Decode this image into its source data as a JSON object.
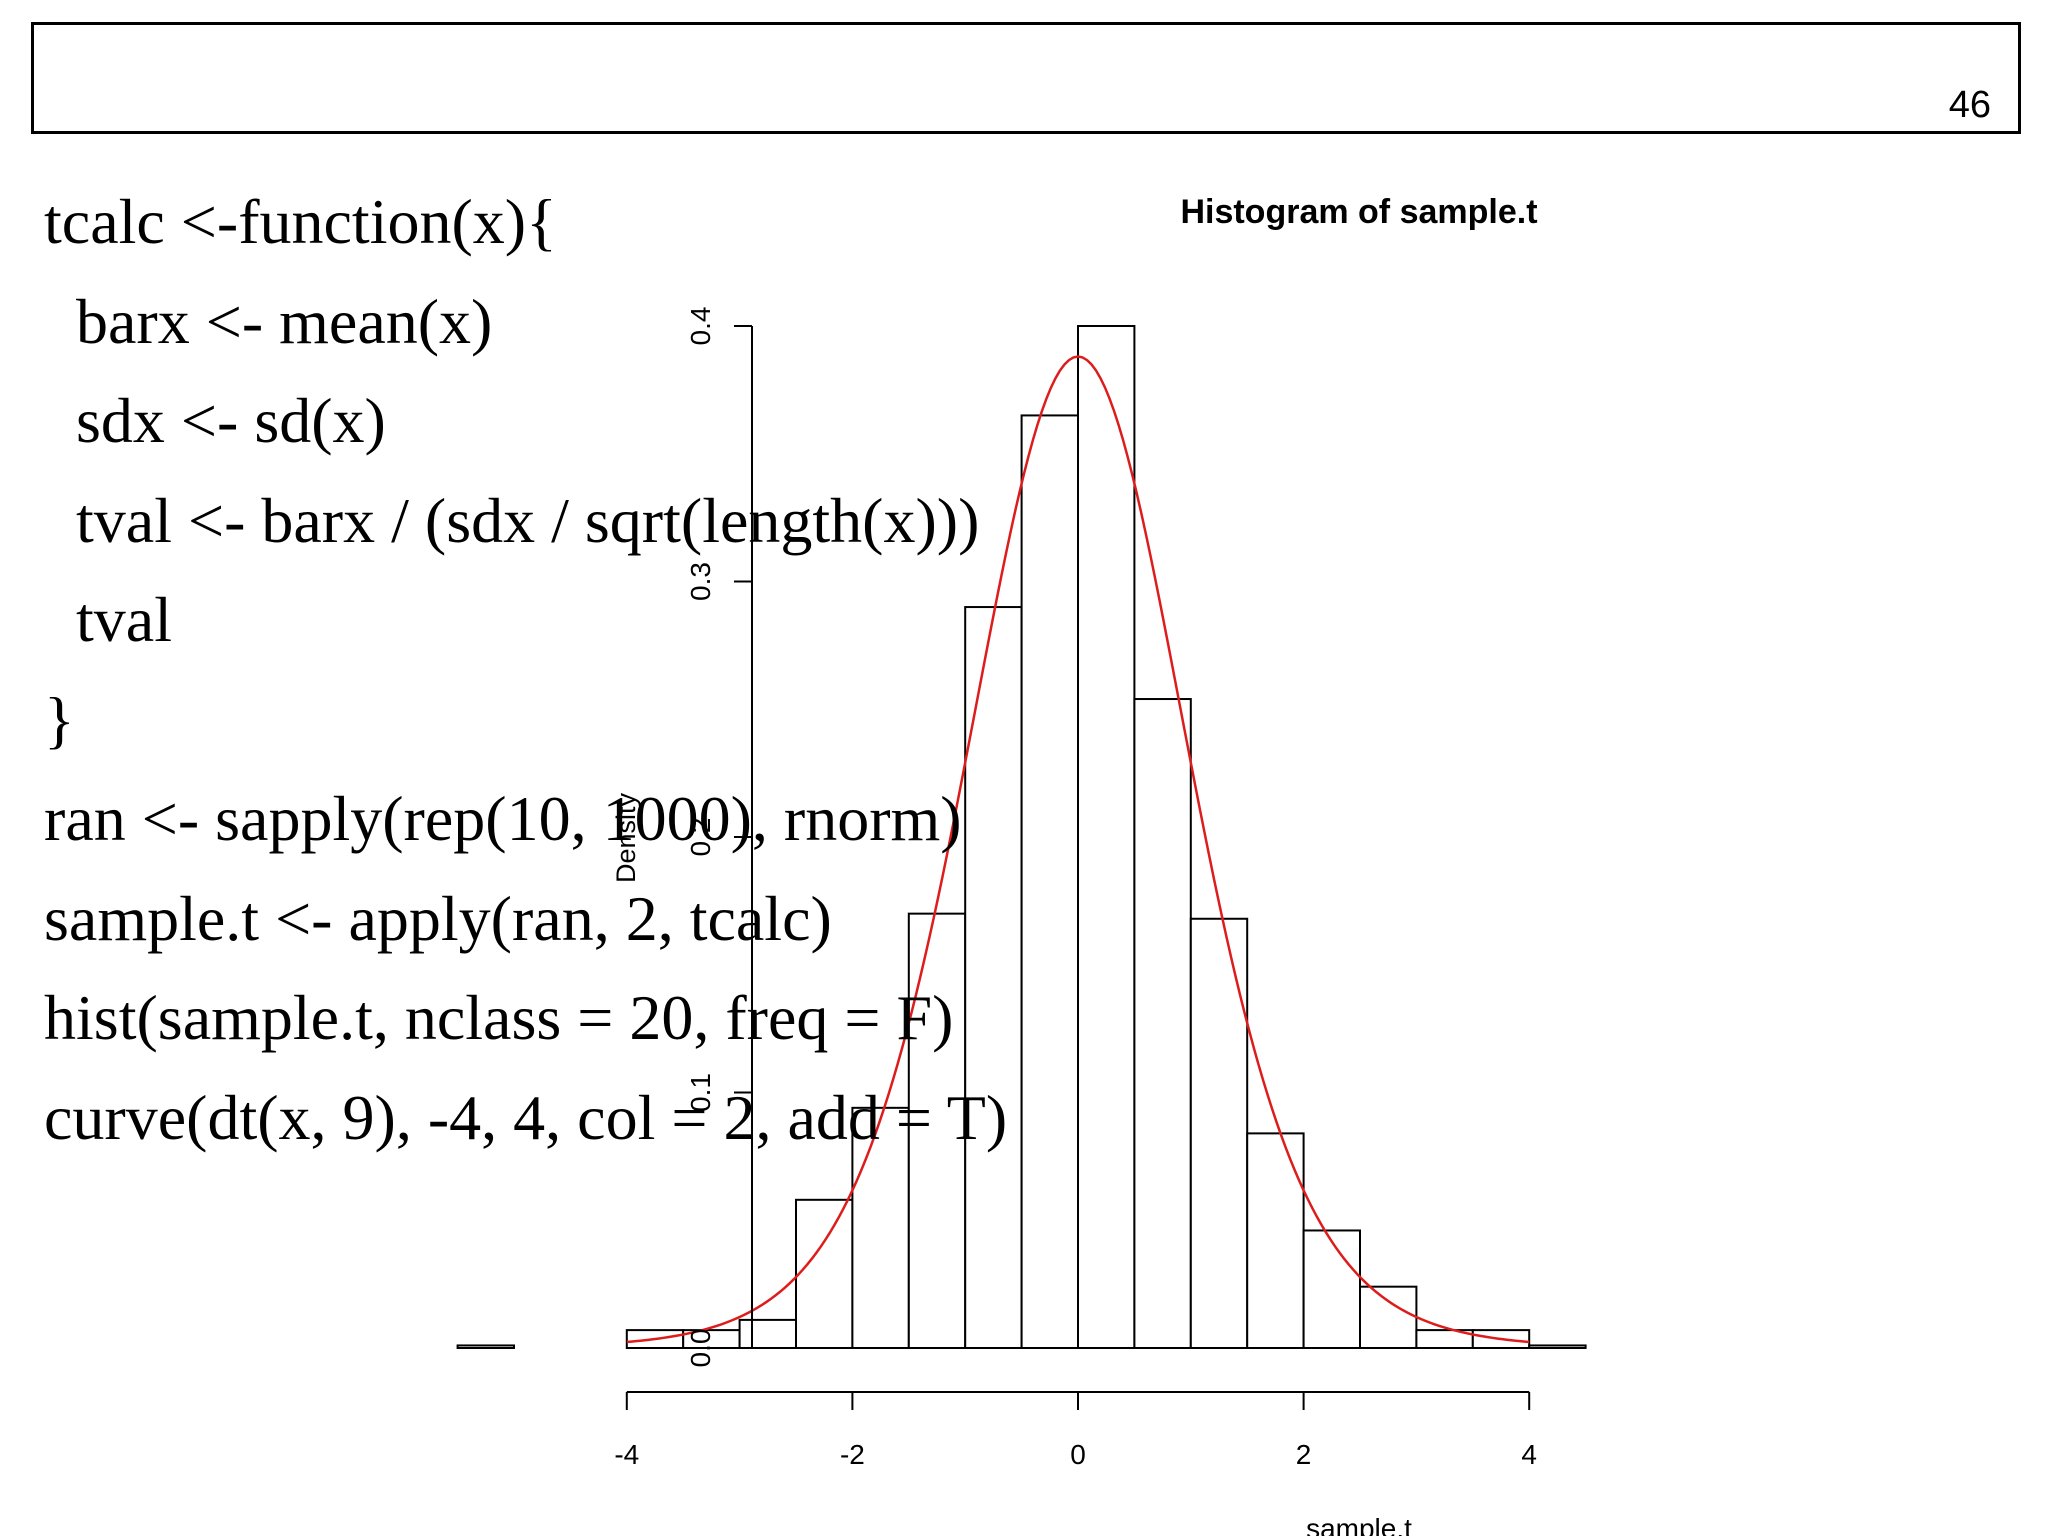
{
  "slide": {
    "page_number": "46"
  },
  "code": {
    "lines": [
      "tcalc <-function(x){",
      "  barx <- mean(x)",
      "  sdx <- sd(x)",
      "  tval <- barx / (sdx / sqrt(length(x)))",
      "  tval",
      "}",
      "ran <- sapply(rep(10, 1000), rnorm)",
      "sample.t <- apply(ran, 2, tcalc)",
      "hist(sample.t, nclass = 20, freq = F)",
      "curve(dt(x, 9), -4, 4, col = 2, add = T)"
    ]
  },
  "chart_data": {
    "type": "bar",
    "title": "Histogram of sample.t",
    "xlabel": "sample.t",
    "ylabel": "Density",
    "x_ticks": [
      -4,
      -2,
      0,
      2,
      4
    ],
    "y_ticks": [
      0.0,
      0.1,
      0.2,
      0.3,
      0.4
    ],
    "x_tick_labels": [
      "-4",
      "-2",
      "0",
      "2",
      "4"
    ],
    "y_tick_labels": [
      "0.0",
      "0.1",
      "0.2",
      "0.3",
      "0.4"
    ],
    "xlim": [
      -5.5,
      4.5
    ],
    "ylim": [
      0,
      0.4
    ],
    "bins": [
      {
        "x0": -5.5,
        "x1": -5.0,
        "density": 0.001
      },
      {
        "x0": -5.0,
        "x1": -4.5,
        "density": 0.0
      },
      {
        "x0": -4.5,
        "x1": -4.0,
        "density": 0.0
      },
      {
        "x0": -4.0,
        "x1": -3.5,
        "density": 0.007
      },
      {
        "x0": -3.5,
        "x1": -3.0,
        "density": 0.007
      },
      {
        "x0": -3.0,
        "x1": -2.5,
        "density": 0.011
      },
      {
        "x0": -2.5,
        "x1": -2.0,
        "density": 0.058
      },
      {
        "x0": -2.0,
        "x1": -1.5,
        "density": 0.094
      },
      {
        "x0": -1.5,
        "x1": -1.0,
        "density": 0.17
      },
      {
        "x0": -1.0,
        "x1": -0.5,
        "density": 0.29
      },
      {
        "x0": -0.5,
        "x1": 0.0,
        "density": 0.365
      },
      {
        "x0": 0.0,
        "x1": 0.5,
        "density": 0.4
      },
      {
        "x0": 0.5,
        "x1": 1.0,
        "density": 0.254
      },
      {
        "x0": 1.0,
        "x1": 1.5,
        "density": 0.168
      },
      {
        "x0": 1.5,
        "x1": 2.0,
        "density": 0.084
      },
      {
        "x0": 2.0,
        "x1": 2.5,
        "density": 0.046
      },
      {
        "x0": 2.5,
        "x1": 3.0,
        "density": 0.024
      },
      {
        "x0": 3.0,
        "x1": 3.5,
        "density": 0.007
      },
      {
        "x0": 3.5,
        "x1": 4.0,
        "density": 0.007
      },
      {
        "x0": 4.0,
        "x1": 4.5,
        "density": 0.001
      }
    ],
    "curve": {
      "expression": "dt(x, 9)",
      "df": 9,
      "from": -4,
      "to": 4,
      "color": "#dd1c1c"
    },
    "bar_fill": "#ffffff",
    "bar_stroke": "#000000",
    "grid": false
  }
}
